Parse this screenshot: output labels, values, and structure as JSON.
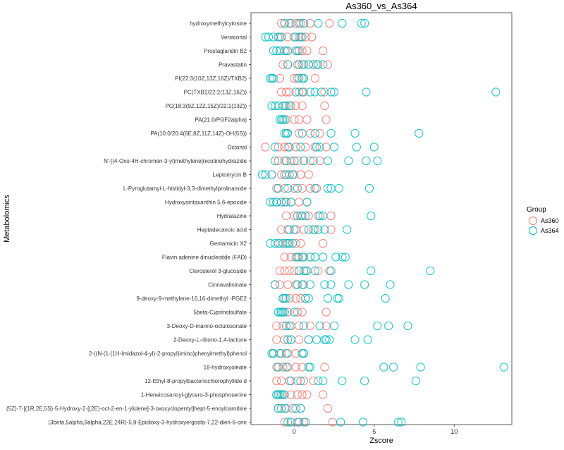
{
  "chart_data": {
    "type": "scatter",
    "title": "As360_vs_As364",
    "xlabel": "Zscore",
    "ylabel": "Metabolomics",
    "xlim": [
      -2.7,
      13.6
    ],
    "xticks": [
      0,
      5,
      10
    ],
    "xtick_labels": [
      "0",
      "5",
      "10"
    ],
    "grid": false,
    "legend_position": "right",
    "legend_title": "Group",
    "colors": {
      "As360": "#F8766D",
      "As364": "#00BFC4"
    },
    "categories": [
      "hydroxymethylcytosine",
      "Versiconal",
      "Prostaglandin B2",
      "Pravastatin",
      "PI(22:3(10Z,13Z,16Z)/TXB2)",
      "PC(TXB2/22:2(13Z,16Z))",
      "PC(18:3(9Z,12Z,15Z)/22:1(13Z))",
      "PA(21:0/PGF2alpha)",
      "PA(10:0/20:4(6E,8Z,11Z,14Z)-OH(5S))",
      "Octanal",
      "N'-[(4-Oxo-4H-chromen-3-yl)methylene]nicotinohydrazide",
      "Leptomycin B",
      "L-Pyroglutamyl-L-histidyl-3,3-dimethylprolinamide",
      "Hydroxysintaxanthin 5,6-epoxide",
      "Hydralazine",
      "Heptadecanoic acid",
      "Gentamicin X2",
      "Flavin adenine dinucleotide (FAD)",
      "Clerosterol 3-glucoside",
      "Cinnavalininate",
      "9-deoxy-9-methylene-16,16-dimethyl -PGE2",
      "5beta-Cyprinolsulfate",
      "3-Deoxy-D-manno-octulosonate",
      "2-Deoxy-L-ribono-1,4-lactone",
      "2-((N-(1-(1H-Imidazol-4-yl)-2-propyl)imino)phenylmethyl)phenol",
      "18-hydroxyoleate",
      "12-Ethyl-8-propylbacteriochlorophyllide d",
      "1-Heneicosanoyl-glycero-3-phosphoserine",
      "(5Z)-7-[(1R,2E,5S)-5-Hydroxy-2-[(2E)-oct-2-en-1-ylidene]-3-oxocyclopentyl]hept-5-enoylcarnitine",
      "(3beta,5alpha,9alpha,22E,24R)-5,9-Epidioxy-3-hydroxyergosta-7,22-dien-6-one"
    ],
    "series": [
      {
        "name": "As360",
        "values": [
          [
            -0.8,
            -0.6,
            -0.2,
            0.1,
            0.4,
            0.6,
            1.0,
            2.2
          ],
          [
            -0.9,
            -0.4,
            0.1,
            0.4,
            0.7,
            1.1
          ],
          [
            -0.9,
            -0.5,
            0.2,
            0.5,
            0.8,
            1.8
          ],
          [
            -0.7,
            -0.4,
            0.2,
            0.5,
            0.9,
            1.4,
            2.1
          ],
          [
            -0.9,
            0.0,
            0.2,
            0.6,
            1.3
          ],
          [
            -0.8,
            -0.5,
            -0.3,
            0.3,
            0.6,
            1.9
          ],
          [
            -0.6,
            -0.2,
            0.1,
            0.5,
            1.9
          ],
          [
            -0.5,
            0.0,
            0.3,
            0.8,
            2.0
          ],
          [
            -0.5,
            0.3,
            1.0,
            1.6
          ],
          [
            -1.8,
            -1.0,
            -0.6,
            -0.4,
            0.1,
            0.7,
            1.3,
            2.0
          ],
          [
            -1.0,
            -0.6,
            -0.2,
            0.2,
            0.6,
            1.0,
            1.6
          ],
          [
            -1.4,
            -0.8,
            -0.5,
            0.0,
            0.4,
            0.9
          ],
          [
            -1.1,
            -0.6,
            0.0,
            0.5,
            1.0,
            1.4
          ],
          [
            -1.1,
            -0.6,
            -0.2,
            0.3,
            0.8
          ],
          [
            -0.5,
            0.0,
            0.4,
            0.9,
            1.5,
            2.3
          ],
          [
            -0.8,
            -0.4,
            0.1,
            0.6,
            1.3,
            2.3
          ],
          [
            -0.9,
            -0.4,
            0.1,
            0.4,
            1.8
          ],
          [
            -0.6,
            -0.2,
            0.2,
            0.5,
            1.0
          ],
          [
            -0.9,
            -0.6,
            -0.3,
            0.0,
            0.3,
            0.7,
            1.5,
            2.2
          ],
          [
            -1.2,
            -0.9,
            -0.4,
            0.1,
            0.6
          ],
          [
            -0.7,
            -0.3,
            0.1,
            0.4,
            0.7
          ],
          [
            -0.8,
            -0.4,
            0.2,
            0.5,
            2.0
          ],
          [
            -1.1,
            -0.7,
            -0.2,
            0.3,
            1.0,
            2.0
          ],
          [
            -1.1,
            -0.6,
            -0.2,
            0.3,
            0.9
          ],
          [
            -1.3,
            -0.8,
            -0.4,
            0.1,
            0.6
          ],
          [
            -1.1,
            -0.7,
            -0.4,
            0.1,
            0.5,
            1.9
          ],
          [
            -1.1,
            -0.8,
            -0.3,
            0.2,
            0.6,
            1.2
          ],
          [
            -1.1,
            -0.7,
            -0.2,
            0.2,
            0.5,
            0.8,
            1.8
          ],
          [
            -1.0,
            -0.6,
            -0.1,
            0.4,
            2.1
          ],
          [
            -0.6,
            -0.2,
            0.2,
            0.6,
            2.4
          ]
        ]
      },
      {
        "name": "As364",
        "values": [
          [
            -0.6,
            -0.3,
            0.3,
            0.6,
            1.5,
            3.0,
            4.2,
            4.4
          ],
          [
            -1.8,
            -1.6,
            -1.3,
            -1.0,
            -0.8,
            0.0,
            0.3,
            0.5
          ],
          [
            -1.3,
            -1.1,
            -0.9,
            -0.6,
            -0.4,
            0.1,
            0.3
          ],
          [
            -0.4,
            0.3,
            0.6,
            0.9,
            1.2,
            1.5,
            1.8
          ],
          [
            -1.5,
            -1.4,
            -1.3,
            0.3,
            0.5,
            0.6
          ],
          [
            0.1,
            0.5,
            1.0,
            1.3,
            1.7,
            2.3,
            2.5,
            4.5,
            12.6
          ],
          [
            -1.4,
            -1.2,
            -1.0,
            -0.7,
            -0.5,
            -0.3
          ],
          [
            -0.9,
            -0.8,
            -0.7,
            -0.6
          ],
          [
            -0.6,
            -0.5,
            -0.4,
            0.5,
            1.3,
            2.3,
            3.8,
            7.8
          ],
          [
            -1.2,
            -0.3,
            0.4,
            1.4,
            1.6,
            2.5,
            3.9,
            5.0
          ],
          [
            -1.2,
            -0.5,
            0.0,
            0.6,
            1.2,
            2.1,
            3.4,
            4.5,
            5.2
          ],
          [
            -2.0,
            -1.8,
            -1.4,
            -0.6,
            -0.3,
            -0.1
          ],
          [
            -1.0,
            -0.4,
            0.2,
            1.3,
            2.1,
            2.3,
            2.8,
            4.7
          ],
          [
            -1.5,
            -1.3,
            -1.1,
            -0.8,
            -0.5,
            -0.2,
            0.8
          ],
          [
            0.2,
            0.5,
            0.7,
            1.6,
            1.8,
            4.8
          ],
          [
            -0.3,
            0.0,
            0.9,
            1.2,
            1.5,
            1.9,
            3.3
          ],
          [
            -1.5,
            -1.2,
            -1.0,
            -0.7,
            -0.5,
            -0.3,
            -0.1
          ],
          [
            0.1,
            0.3,
            0.6,
            1.0,
            1.3,
            1.8,
            2.6,
            3.0,
            3.2
          ],
          [
            0.3,
            0.6,
            0.8,
            1.3,
            2.3,
            4.8,
            8.5
          ],
          [
            -1.2,
            0.2,
            0.5,
            1.0,
            1.9,
            2.3,
            3.4,
            4.4,
            6.0
          ],
          [
            -0.7,
            -0.6,
            -0.5,
            0.7,
            0.9,
            2.1,
            2.7,
            2.8,
            5.7
          ],
          [
            -1.0,
            -0.9,
            -0.8,
            -0.7,
            -0.6,
            0.0
          ],
          [
            -0.5,
            -0.3,
            0.6,
            1.6,
            2.5,
            5.2,
            5.9,
            7.1
          ],
          [
            -0.4,
            -0.2,
            0.9,
            1.4,
            1.9,
            2.0,
            2.2,
            3.8,
            4.6
          ],
          [
            -1.4,
            -1.3,
            -0.9,
            -0.5,
            0.5,
            0.6
          ],
          [
            -1.0,
            -0.5,
            0.9,
            1.0,
            5.6,
            6.2,
            7.9,
            13.1
          ],
          [
            -0.2,
            0.4,
            1.5,
            1.8,
            3.0,
            4.4,
            7.6
          ],
          [
            -1.1,
            -1.0,
            -0.9,
            -0.8,
            -0.6
          ],
          [
            -1.0,
            -0.8,
            -0.5,
            0.1,
            0.4
          ],
          [
            -0.4,
            -0.2,
            0.3,
            0.7,
            2.9,
            4.3,
            6.5,
            6.7
          ]
        ]
      }
    ]
  }
}
